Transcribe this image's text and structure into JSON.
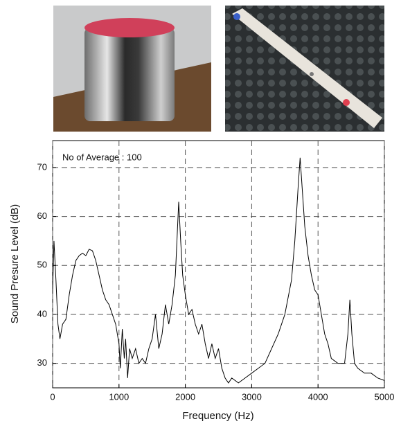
{
  "chart_data": {
    "type": "line",
    "annotation": "No of Average : 100",
    "x_label": "Frequency (Hz)",
    "y_label": "Sound Presure Level (dB)",
    "x": [
      0,
      20,
      50,
      80,
      110,
      150,
      200,
      250,
      300,
      350,
      400,
      450,
      500,
      550,
      600,
      650,
      700,
      750,
      800,
      850,
      900,
      950,
      1000,
      1020,
      1050,
      1080,
      1100,
      1130,
      1160,
      1200,
      1250,
      1300,
      1350,
      1400,
      1450,
      1500,
      1550,
      1600,
      1650,
      1700,
      1750,
      1800,
      1850,
      1900,
      1930,
      1960,
      2000,
      2050,
      2100,
      2150,
      2200,
      2250,
      2300,
      2350,
      2400,
      2450,
      2500,
      2550,
      2600,
      2650,
      2700,
      2800,
      2900,
      3000,
      3100,
      3200,
      3300,
      3400,
      3500,
      3600,
      3650,
      3700,
      3730,
      3760,
      3800,
      3850,
      3900,
      3950,
      4000,
      4050,
      4100,
      4150,
      4200,
      4300,
      4400,
      4450,
      4480,
      4510,
      4550,
      4600,
      4700,
      4800,
      4900,
      5000
    ],
    "values": [
      45,
      55,
      47,
      38,
      35,
      38,
      39,
      44,
      48,
      51,
      52,
      52.5,
      52,
      53.3,
      53,
      51,
      48,
      45,
      43,
      42,
      40,
      38,
      34,
      29,
      37,
      31,
      35,
      27,
      33,
      31,
      33,
      30,
      31,
      30,
      33,
      35,
      40,
      33,
      36,
      42,
      38,
      42,
      48,
      63,
      55,
      48,
      44,
      40,
      41,
      38,
      36,
      38,
      34,
      31,
      34,
      31,
      33,
      29,
      27,
      26,
      27,
      26,
      27,
      28,
      29,
      30,
      33,
      36,
      40,
      47,
      55,
      66,
      72,
      66,
      58,
      52,
      48,
      45,
      44,
      40,
      36,
      34,
      31,
      30,
      30,
      36,
      43,
      36,
      30,
      29,
      28,
      28,
      27,
      26.5
    ],
    "color": "#000000",
    "xlim": [
      0,
      5000
    ],
    "xticks": [
      0,
      1000,
      2000,
      3000,
      4000,
      5000
    ],
    "ylim": [
      25,
      75.5
    ],
    "yticks": [
      30,
      40,
      50,
      60,
      70
    ],
    "grid": true
  }
}
